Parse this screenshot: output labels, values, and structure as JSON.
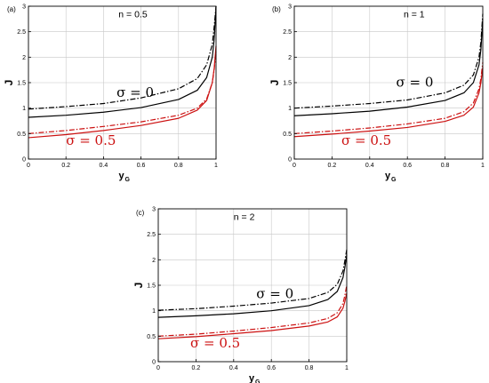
{
  "chart_data": [
    {
      "panel": "(a)",
      "type": "line",
      "title": "n = 0.5",
      "xlabel": "y",
      "xlabel_sub": "G",
      "ylabel": "J",
      "xlim": [
        0,
        1
      ],
      "ylim": [
        0,
        3
      ],
      "xticks": [
        "0",
        "0.2",
        "0.4",
        "0.6",
        "0.8",
        "1"
      ],
      "yticks": [
        "0",
        "0.5",
        "1",
        "1.5",
        "2",
        "2.5",
        "3"
      ],
      "grid": true,
      "annotations": [
        {
          "text": "σ = 0",
          "color": "#000000",
          "x": 0.47,
          "y": 1.22
        },
        {
          "text": "σ = 0.5",
          "color": "#cc1111",
          "x": 0.2,
          "y": 0.28
        }
      ],
      "series": [
        {
          "color": "#000000",
          "dash": "solid",
          "x": [
            0,
            0.2,
            0.4,
            0.6,
            0.8,
            0.9,
            0.95,
            0.98,
            0.99,
            1.0
          ],
          "y": [
            0.82,
            0.86,
            0.92,
            1.01,
            1.17,
            1.35,
            1.6,
            2.0,
            2.35,
            3.0
          ]
        },
        {
          "color": "#000000",
          "dash": "dashdot",
          "x": [
            0,
            0.2,
            0.4,
            0.6,
            0.8,
            0.9,
            0.95,
            0.98,
            0.99,
            1.0
          ],
          "y": [
            0.98,
            1.03,
            1.09,
            1.2,
            1.38,
            1.58,
            1.85,
            2.25,
            2.6,
            3.0
          ]
        },
        {
          "color": "#cc1111",
          "dash": "solid",
          "x": [
            0,
            0.2,
            0.4,
            0.6,
            0.8,
            0.9,
            0.95,
            0.98,
            0.99,
            1.0
          ],
          "y": [
            0.42,
            0.48,
            0.56,
            0.66,
            0.8,
            0.96,
            1.15,
            1.5,
            1.78,
            2.22
          ]
        },
        {
          "color": "#cc1111",
          "dash": "dashdot",
          "x": [
            0,
            0.2,
            0.4,
            0.6,
            0.8,
            0.9,
            0.95,
            0.98,
            0.99,
            1.0
          ],
          "y": [
            0.5,
            0.56,
            0.64,
            0.73,
            0.86,
            1.0,
            1.18,
            1.5,
            1.75,
            2.1
          ]
        }
      ]
    },
    {
      "panel": "(b)",
      "type": "line",
      "title": "n = 1",
      "xlabel": "y",
      "xlabel_sub": "G",
      "ylabel": "J",
      "xlim": [
        0,
        1
      ],
      "ylim": [
        0,
        3
      ],
      "xticks": [
        "0",
        "0.2",
        "0.4",
        "0.6",
        "0.8",
        "1"
      ],
      "yticks": [
        "0",
        "0.5",
        "1",
        "1.5",
        "2",
        "2.5",
        "3"
      ],
      "grid": true,
      "annotations": [
        {
          "text": "σ = 0",
          "color": "#000000",
          "x": 0.54,
          "y": 1.42
        },
        {
          "text": "σ = 0.5",
          "color": "#cc1111",
          "x": 0.25,
          "y": 0.28
        }
      ],
      "series": [
        {
          "color": "#000000",
          "dash": "solid",
          "x": [
            0,
            0.2,
            0.4,
            0.6,
            0.8,
            0.9,
            0.95,
            0.98,
            0.99,
            1.0
          ],
          "y": [
            0.85,
            0.89,
            0.94,
            1.02,
            1.15,
            1.3,
            1.5,
            1.85,
            2.15,
            2.75
          ]
        },
        {
          "color": "#000000",
          "dash": "dashdot",
          "x": [
            0,
            0.2,
            0.4,
            0.6,
            0.8,
            0.9,
            0.95,
            0.98,
            0.99,
            1.0
          ],
          "y": [
            1.0,
            1.04,
            1.09,
            1.16,
            1.3,
            1.45,
            1.65,
            2.0,
            2.3,
            2.85
          ]
        },
        {
          "color": "#cc1111",
          "dash": "solid",
          "x": [
            0,
            0.2,
            0.4,
            0.6,
            0.8,
            0.9,
            0.95,
            0.98,
            0.99,
            1.0
          ],
          "y": [
            0.44,
            0.49,
            0.55,
            0.62,
            0.74,
            0.86,
            1.02,
            1.3,
            1.5,
            1.8
          ]
        },
        {
          "color": "#cc1111",
          "dash": "dashdot",
          "x": [
            0,
            0.2,
            0.4,
            0.6,
            0.8,
            0.9,
            0.95,
            0.98,
            0.99,
            1.0
          ],
          "y": [
            0.5,
            0.55,
            0.61,
            0.69,
            0.8,
            0.93,
            1.1,
            1.38,
            1.58,
            1.9
          ]
        }
      ]
    },
    {
      "panel": "(c)",
      "type": "line",
      "title": "n = 2",
      "xlabel": "y",
      "xlabel_sub": "G",
      "ylabel": "J",
      "xlim": [
        0,
        1
      ],
      "ylim": [
        0,
        3
      ],
      "xticks": [
        "0",
        "0.2",
        "0.4",
        "0.6",
        "0.8",
        "1"
      ],
      "yticks": [
        "0",
        "0.5",
        "1",
        "1.5",
        "2",
        "2.5",
        "3"
      ],
      "grid": true,
      "annotations": [
        {
          "text": "σ = 0",
          "color": "#000000",
          "x": 0.52,
          "y": 1.25
        },
        {
          "text": "σ = 0.5",
          "color": "#cc1111",
          "x": 0.17,
          "y": 0.28
        }
      ],
      "series": [
        {
          "color": "#000000",
          "dash": "solid",
          "x": [
            0,
            0.2,
            0.4,
            0.6,
            0.8,
            0.9,
            0.95,
            0.98,
            0.99,
            1.0
          ],
          "y": [
            0.87,
            0.9,
            0.94,
            1.0,
            1.1,
            1.22,
            1.38,
            1.65,
            1.85,
            2.1
          ]
        },
        {
          "color": "#000000",
          "dash": "dashdot",
          "x": [
            0,
            0.2,
            0.4,
            0.6,
            0.8,
            0.9,
            0.95,
            0.98,
            0.99,
            1.0
          ],
          "y": [
            1.01,
            1.04,
            1.09,
            1.15,
            1.24,
            1.36,
            1.52,
            1.78,
            1.98,
            2.2
          ]
        },
        {
          "color": "#cc1111",
          "dash": "solid",
          "x": [
            0,
            0.2,
            0.4,
            0.6,
            0.8,
            0.9,
            0.95,
            0.98,
            0.99,
            1.0
          ],
          "y": [
            0.45,
            0.49,
            0.55,
            0.61,
            0.7,
            0.78,
            0.88,
            1.05,
            1.18,
            1.35
          ]
        },
        {
          "color": "#cc1111",
          "dash": "dashdot",
          "x": [
            0,
            0.2,
            0.4,
            0.6,
            0.8,
            0.9,
            0.95,
            0.98,
            0.99,
            1.0
          ],
          "y": [
            0.5,
            0.54,
            0.6,
            0.67,
            0.76,
            0.85,
            0.96,
            1.14,
            1.3,
            1.5
          ]
        }
      ]
    }
  ]
}
